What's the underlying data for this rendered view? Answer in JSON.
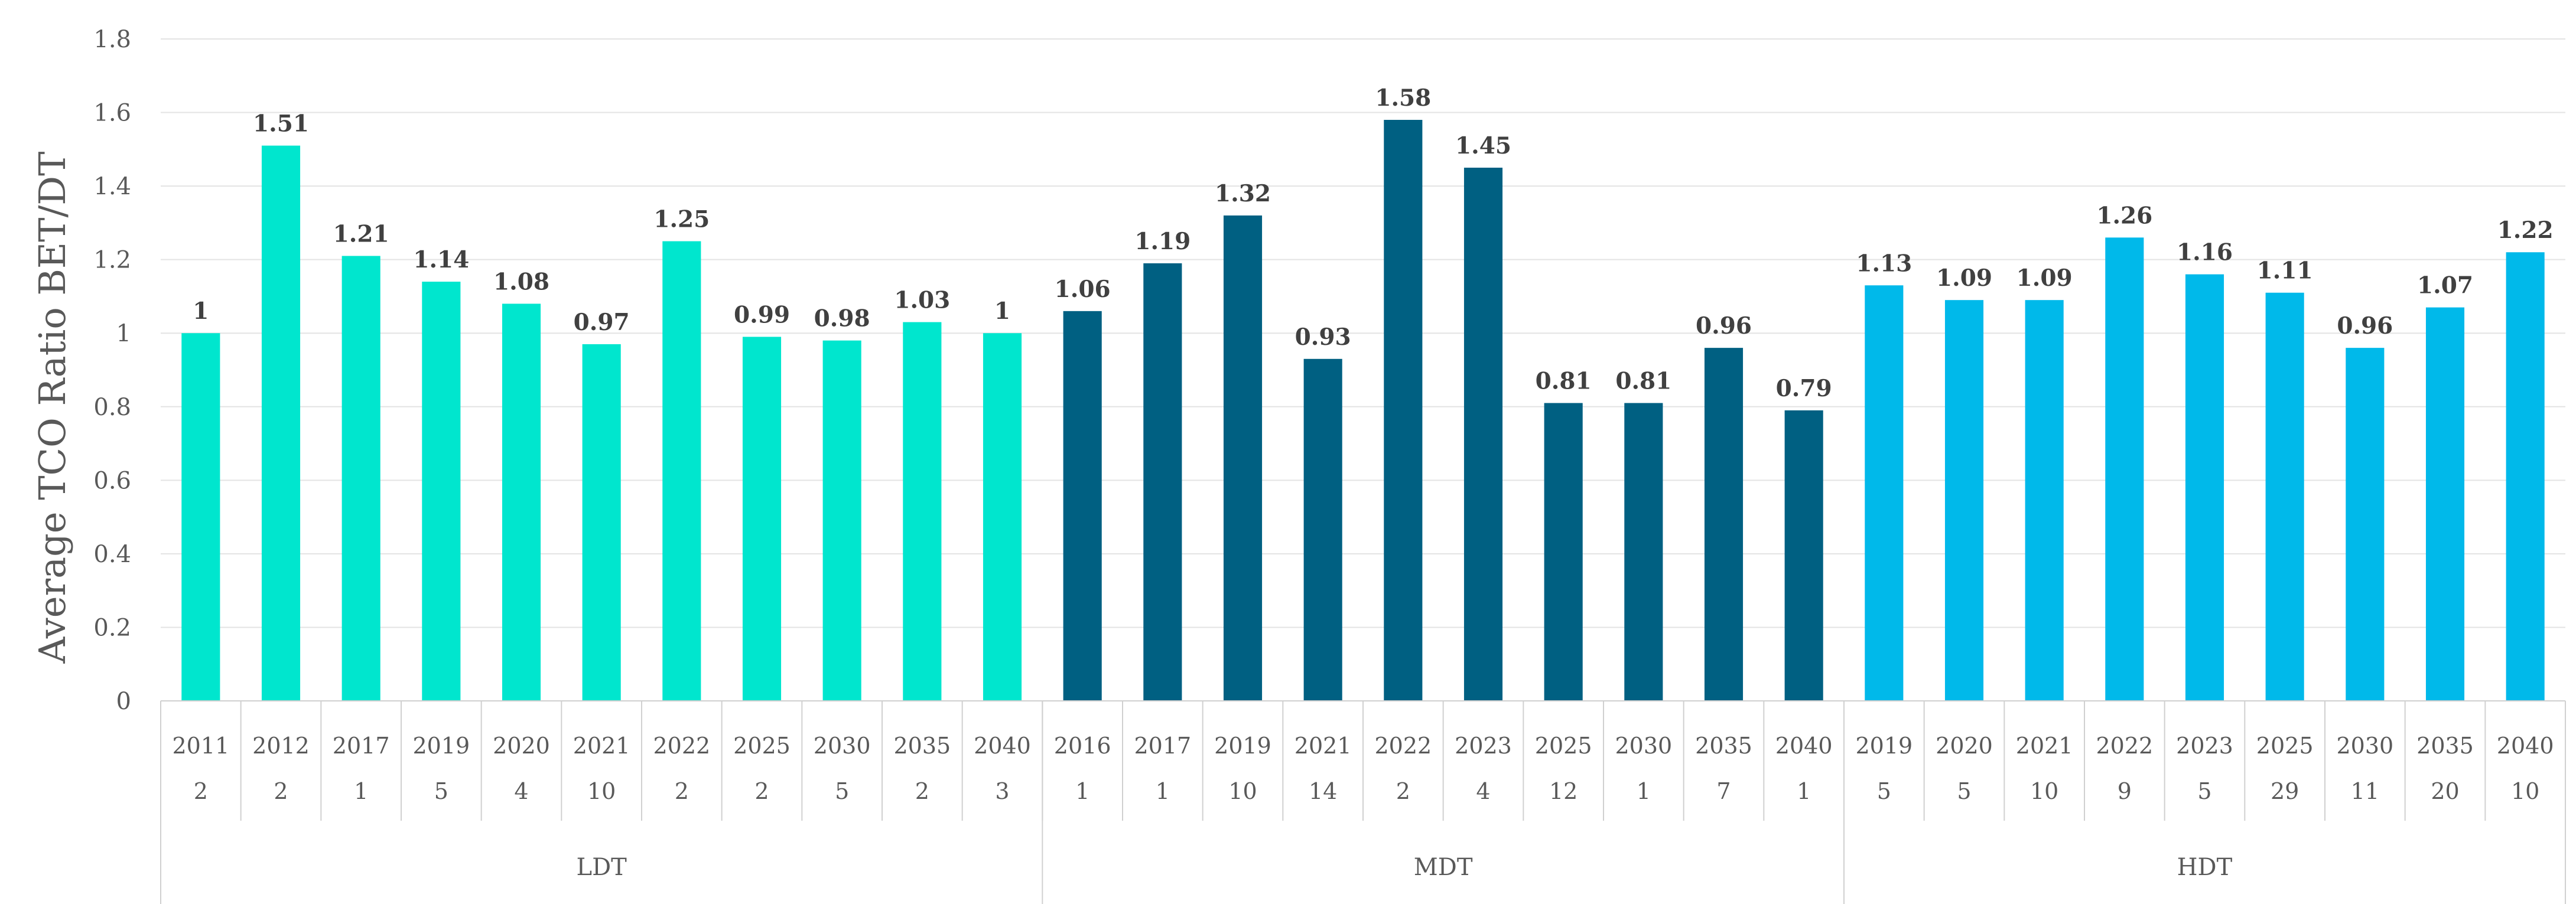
{
  "chart_data": {
    "type": "bar",
    "title": "",
    "ylabel": "Average TCO Ratio BET/DT",
    "xlabel": "",
    "ylim": [
      0,
      1.8
    ],
    "yticks": [
      "0",
      "0.2",
      "0.4",
      "0.6",
      "0.8",
      "1",
      "1.2",
      "1.4",
      "1.6",
      "1.8"
    ],
    "grid": true,
    "groups": [
      {
        "name": "LDT",
        "color": "#00E6CE",
        "bars": [
          {
            "year": "2011",
            "count": "2",
            "value": 1,
            "label": "1"
          },
          {
            "year": "2012",
            "count": "2",
            "value": 1.51,
            "label": "1.51"
          },
          {
            "year": "2017",
            "count": "1",
            "value": 1.21,
            "label": "1.21"
          },
          {
            "year": "2019",
            "count": "5",
            "value": 1.14,
            "label": "1.14"
          },
          {
            "year": "2020",
            "count": "4",
            "value": 1.08,
            "label": "1.08"
          },
          {
            "year": "2021",
            "count": "10",
            "value": 0.97,
            "label": "0.97"
          },
          {
            "year": "2022",
            "count": "2",
            "value": 1.25,
            "label": "1.25"
          },
          {
            "year": "2025",
            "count": "2",
            "value": 0.99,
            "label": "0.99"
          },
          {
            "year": "2030",
            "count": "5",
            "value": 0.98,
            "label": "0.98"
          },
          {
            "year": "2035",
            "count": "2",
            "value": 1.03,
            "label": "1.03"
          },
          {
            "year": "2040",
            "count": "3",
            "value": 1,
            "label": "1"
          }
        ]
      },
      {
        "name": "MDT",
        "color": "#006082",
        "bars": [
          {
            "year": "2016",
            "count": "1",
            "value": 1.06,
            "label": "1.06"
          },
          {
            "year": "2017",
            "count": "1",
            "value": 1.19,
            "label": "1.19"
          },
          {
            "year": "2019",
            "count": "10",
            "value": 1.32,
            "label": "1.32"
          },
          {
            "year": "2021",
            "count": "14",
            "value": 0.93,
            "label": "0.93"
          },
          {
            "year": "2022",
            "count": "2",
            "value": 1.58,
            "label": "1.58"
          },
          {
            "year": "2023",
            "count": "4",
            "value": 1.45,
            "label": "1.45"
          },
          {
            "year": "2025",
            "count": "12",
            "value": 0.81,
            "label": "0.81"
          },
          {
            "year": "2030",
            "count": "1",
            "value": 0.81,
            "label": "0.81"
          },
          {
            "year": "2035",
            "count": "7",
            "value": 0.96,
            "label": "0.96"
          },
          {
            "year": "2040",
            "count": "1",
            "value": 0.79,
            "label": "0.79"
          }
        ]
      },
      {
        "name": "HDT",
        "color": "#00B9EA",
        "bars": [
          {
            "year": "2019",
            "count": "5",
            "value": 1.13,
            "label": "1.13"
          },
          {
            "year": "2020",
            "count": "5",
            "value": 1.09,
            "label": "1.09"
          },
          {
            "year": "2021",
            "count": "10",
            "value": 1.09,
            "label": "1.09"
          },
          {
            "year": "2022",
            "count": "9",
            "value": 1.26,
            "label": "1.26"
          },
          {
            "year": "2023",
            "count": "5",
            "value": 1.16,
            "label": "1.16"
          },
          {
            "year": "2025",
            "count": "29",
            "value": 1.11,
            "label": "1.11"
          },
          {
            "year": "2030",
            "count": "11",
            "value": 0.96,
            "label": "0.96"
          },
          {
            "year": "2035",
            "count": "20",
            "value": 1.07,
            "label": "1.07"
          },
          {
            "year": "2040",
            "count": "10",
            "value": 1.22,
            "label": "1.22"
          }
        ]
      }
    ]
  }
}
